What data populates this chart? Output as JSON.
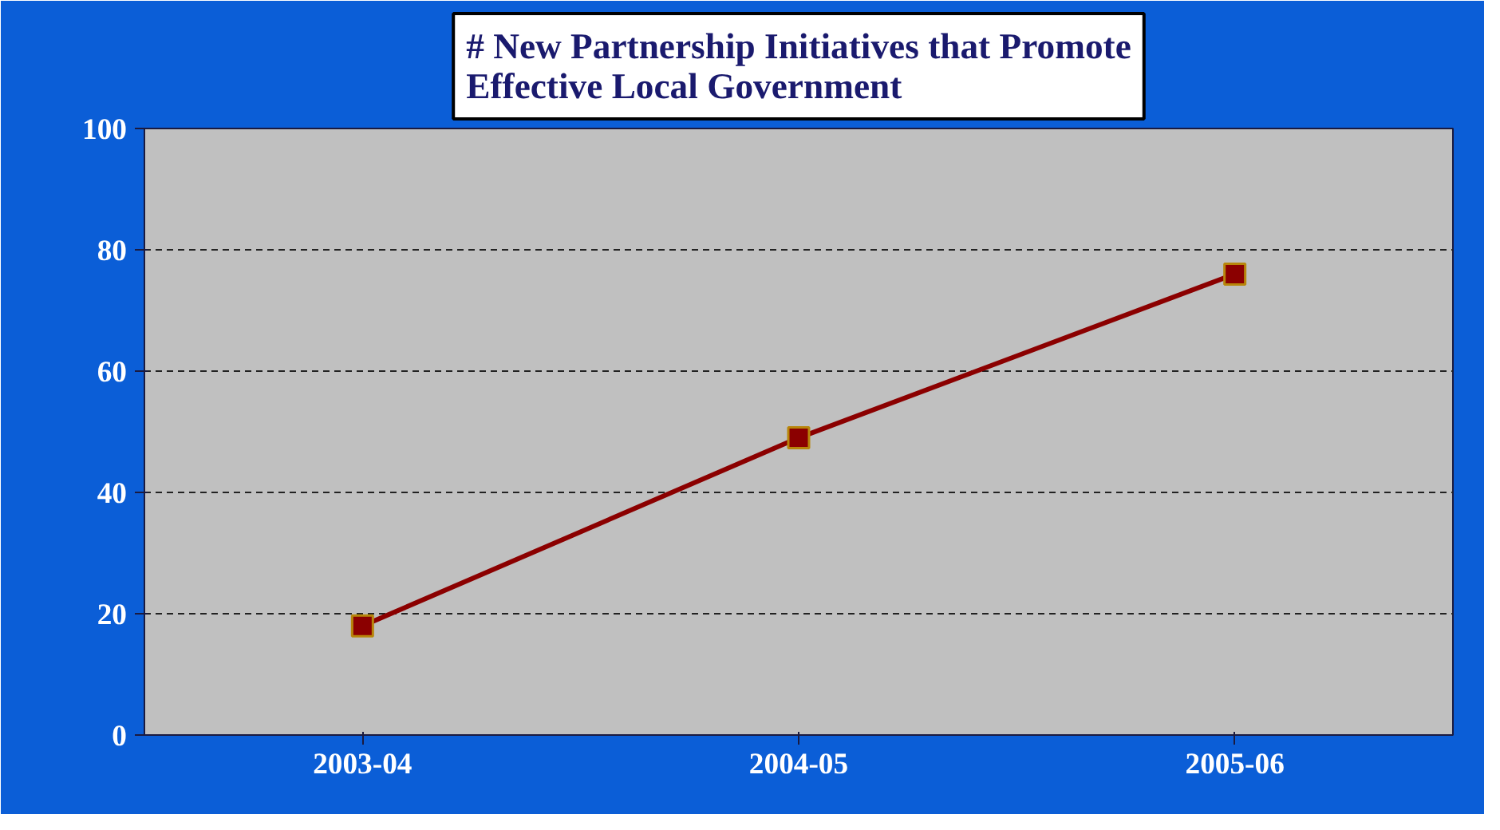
{
  "chart_data": {
    "type": "line",
    "title": "# New Partnership Initiatives that Promote Effective Local Government",
    "categories": [
      "2003-04",
      "2004-05",
      "2005-06"
    ],
    "series": [
      {
        "color": "#8b0000",
        "values": [
          18,
          49,
          76
        ]
      }
    ],
    "ylim": [
      0,
      100
    ],
    "yticks": [
      0,
      20,
      40,
      60,
      80,
      100
    ],
    "grid": "y",
    "marker": "square",
    "line_style": "solid"
  }
}
